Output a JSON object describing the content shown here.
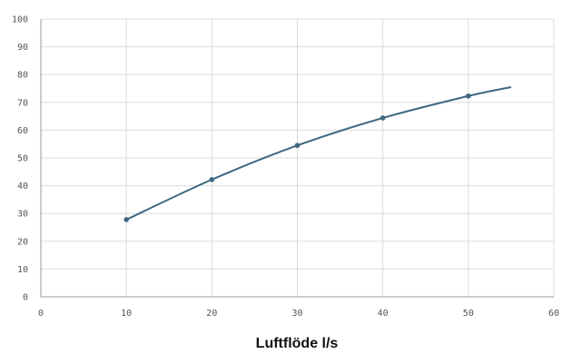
{
  "chart_data": {
    "type": "line",
    "xlabel": "Luftflöde l/s",
    "ylabel": "",
    "xlim": [
      0,
      60
    ],
    "ylim": [
      0,
      100
    ],
    "x_ticks": [
      "0",
      "10",
      "20",
      "30",
      "40",
      "50",
      "60"
    ],
    "y_ticks": [
      "0",
      "10",
      "20",
      "30",
      "40",
      "50",
      "60",
      "70",
      "80",
      "90",
      "100"
    ],
    "grid": true,
    "series": [
      {
        "color": "#3e6880",
        "x": [
          10,
          20,
          30,
          40,
          50,
          55
        ],
        "y": [
          27.8,
          42.2,
          54.5,
          64.4,
          72.3,
          75.5
        ],
        "markers_x": [
          10,
          20,
          30,
          40,
          50
        ]
      }
    ]
  }
}
